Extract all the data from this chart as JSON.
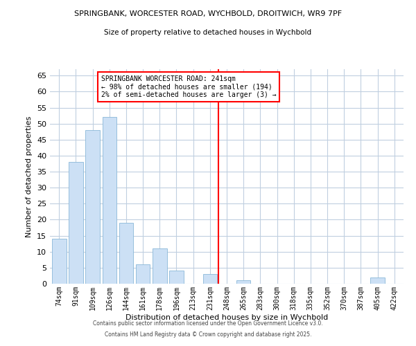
{
  "title": "SPRINGBANK, WORCESTER ROAD, WYCHBOLD, DROITWICH, WR9 7PF",
  "subtitle": "Size of property relative to detached houses in Wychbold",
  "xlabel": "Distribution of detached houses by size in Wychbold",
  "ylabel": "Number of detached properties",
  "categories": [
    "74sqm",
    "91sqm",
    "109sqm",
    "126sqm",
    "144sqm",
    "161sqm",
    "178sqm",
    "196sqm",
    "213sqm",
    "231sqm",
    "248sqm",
    "265sqm",
    "283sqm",
    "300sqm",
    "318sqm",
    "335sqm",
    "352sqm",
    "370sqm",
    "387sqm",
    "405sqm",
    "422sqm"
  ],
  "values": [
    14,
    38,
    48,
    52,
    19,
    6,
    11,
    4,
    0,
    3,
    0,
    1,
    0,
    0,
    0,
    0,
    0,
    0,
    0,
    2,
    0
  ],
  "bar_color": "#cce0f5",
  "bar_edge_color": "#8ab8d8",
  "vline_pos": 9.5,
  "vline_color": "red",
  "annotation_title": "SPRINGBANK WORCESTER ROAD: 241sqm",
  "annotation_line1": "← 98% of detached houses are smaller (194)",
  "annotation_line2": "2% of semi-detached houses are larger (3) →",
  "ylim": [
    0,
    67
  ],
  "yticks": [
    0,
    5,
    10,
    15,
    20,
    25,
    30,
    35,
    40,
    45,
    50,
    55,
    60,
    65
  ],
  "background_color": "#ffffff",
  "grid_color": "#c0cfe0",
  "footer1": "Contains HM Land Registry data © Crown copyright and database right 2025.",
  "footer2": "Contains public sector information licensed under the Open Government Licence v3.0."
}
